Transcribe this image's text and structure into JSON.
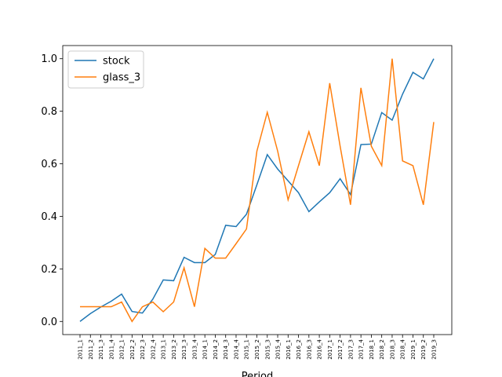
{
  "chart_data": {
    "type": "line",
    "x_label": "Period",
    "categories": [
      "2011_1",
      "2011_2",
      "2011_3",
      "2011_4",
      "2012_1",
      "2012_2",
      "2012_3",
      "2012_4",
      "2013_1",
      "2013_2",
      "2013_3",
      "2013_4",
      "2014_1",
      "2014_2",
      "2014_3",
      "2014_4",
      "2015_1",
      "2015_2",
      "2015_3",
      "2015_4",
      "2016_1",
      "2016_2",
      "2016_3",
      "2016_4",
      "2017_1",
      "2017_2",
      "2017_3",
      "2017_4",
      "2018_1",
      "2018_2",
      "2018_3",
      "2018_4",
      "2019_1",
      "2019_2",
      "2019_3"
    ],
    "series": [
      {
        "name": "stock",
        "color": "#1f77b4",
        "values": [
          0.0,
          0.03,
          0.055,
          0.077,
          0.104,
          0.038,
          0.032,
          0.085,
          0.158,
          0.155,
          0.244,
          0.224,
          0.224,
          0.255,
          0.366,
          0.361,
          0.408,
          0.52,
          0.635,
          0.58,
          0.535,
          0.49,
          0.418,
          0.455,
          0.49,
          0.543,
          0.483,
          0.673,
          0.675,
          0.795,
          0.766,
          0.865,
          0.948,
          0.923,
          1.0
        ]
      },
      {
        "name": "glass_3",
        "color": "#ff7f0e",
        "values": [
          0.056,
          0.056,
          0.056,
          0.056,
          0.074,
          0.0,
          0.056,
          0.074,
          0.037,
          0.074,
          0.204,
          0.056,
          0.278,
          0.241,
          0.241,
          0.296,
          0.352,
          0.648,
          0.796,
          0.648,
          0.463,
          0.593,
          0.722,
          0.593,
          0.907,
          0.667,
          0.444,
          0.889,
          0.667,
          0.593,
          1.0,
          0.611,
          0.593,
          0.444,
          0.759
        ]
      }
    ],
    "ylim": [
      -0.05,
      1.05
    ],
    "yticks": [
      {
        "value": 0.0,
        "label": "0.0"
      },
      0.2,
      0.4,
      0.6,
      0.8,
      {
        "value": 1.0,
        "label": "1.0"
      }
    ],
    "legend": "upper left"
  }
}
